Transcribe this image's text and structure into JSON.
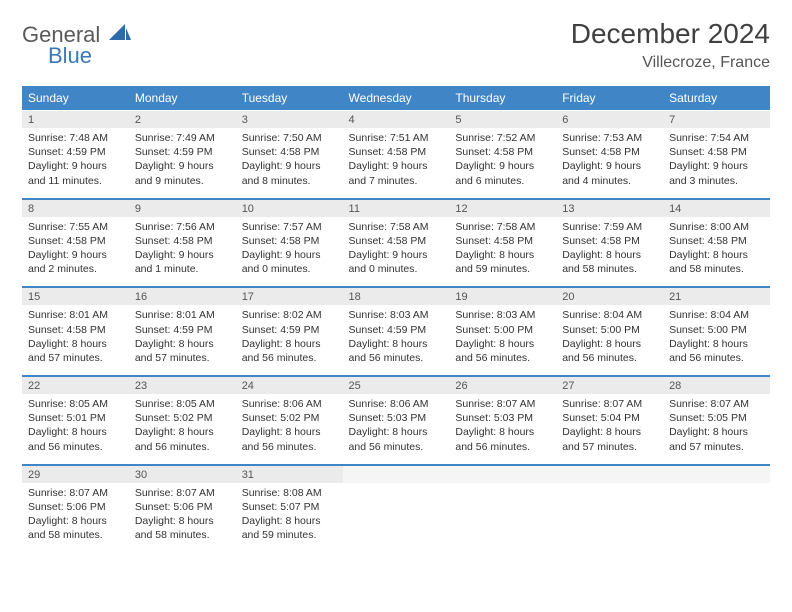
{
  "logo": {
    "line1": "General",
    "line2": "Blue",
    "mark_color": "#2f6aa8"
  },
  "title": "December 2024",
  "location": "Villecroze, France",
  "colors": {
    "header_bg": "#4086c6",
    "header_text": "#ffffff",
    "daynum_bg": "#ebebeb",
    "sep_border": "#4086c6",
    "text": "#333333"
  },
  "daysOfWeek": [
    "Sunday",
    "Monday",
    "Tuesday",
    "Wednesday",
    "Thursday",
    "Friday",
    "Saturday"
  ],
  "weeks": [
    {
      "nums": [
        "1",
        "2",
        "3",
        "4",
        "5",
        "6",
        "7"
      ],
      "details": [
        {
          "sunrise": "Sunrise: 7:48 AM",
          "sunset": "Sunset: 4:59 PM",
          "day1": "Daylight: 9 hours",
          "day2": "and 11 minutes."
        },
        {
          "sunrise": "Sunrise: 7:49 AM",
          "sunset": "Sunset: 4:59 PM",
          "day1": "Daylight: 9 hours",
          "day2": "and 9 minutes."
        },
        {
          "sunrise": "Sunrise: 7:50 AM",
          "sunset": "Sunset: 4:58 PM",
          "day1": "Daylight: 9 hours",
          "day2": "and 8 minutes."
        },
        {
          "sunrise": "Sunrise: 7:51 AM",
          "sunset": "Sunset: 4:58 PM",
          "day1": "Daylight: 9 hours",
          "day2": "and 7 minutes."
        },
        {
          "sunrise": "Sunrise: 7:52 AM",
          "sunset": "Sunset: 4:58 PM",
          "day1": "Daylight: 9 hours",
          "day2": "and 6 minutes."
        },
        {
          "sunrise": "Sunrise: 7:53 AM",
          "sunset": "Sunset: 4:58 PM",
          "day1": "Daylight: 9 hours",
          "day2": "and 4 minutes."
        },
        {
          "sunrise": "Sunrise: 7:54 AM",
          "sunset": "Sunset: 4:58 PM",
          "day1": "Daylight: 9 hours",
          "day2": "and 3 minutes."
        }
      ]
    },
    {
      "nums": [
        "8",
        "9",
        "10",
        "11",
        "12",
        "13",
        "14"
      ],
      "details": [
        {
          "sunrise": "Sunrise: 7:55 AM",
          "sunset": "Sunset: 4:58 PM",
          "day1": "Daylight: 9 hours",
          "day2": "and 2 minutes."
        },
        {
          "sunrise": "Sunrise: 7:56 AM",
          "sunset": "Sunset: 4:58 PM",
          "day1": "Daylight: 9 hours",
          "day2": "and 1 minute."
        },
        {
          "sunrise": "Sunrise: 7:57 AM",
          "sunset": "Sunset: 4:58 PM",
          "day1": "Daylight: 9 hours",
          "day2": "and 0 minutes."
        },
        {
          "sunrise": "Sunrise: 7:58 AM",
          "sunset": "Sunset: 4:58 PM",
          "day1": "Daylight: 9 hours",
          "day2": "and 0 minutes."
        },
        {
          "sunrise": "Sunrise: 7:58 AM",
          "sunset": "Sunset: 4:58 PM",
          "day1": "Daylight: 8 hours",
          "day2": "and 59 minutes."
        },
        {
          "sunrise": "Sunrise: 7:59 AM",
          "sunset": "Sunset: 4:58 PM",
          "day1": "Daylight: 8 hours",
          "day2": "and 58 minutes."
        },
        {
          "sunrise": "Sunrise: 8:00 AM",
          "sunset": "Sunset: 4:58 PM",
          "day1": "Daylight: 8 hours",
          "day2": "and 58 minutes."
        }
      ]
    },
    {
      "nums": [
        "15",
        "16",
        "17",
        "18",
        "19",
        "20",
        "21"
      ],
      "details": [
        {
          "sunrise": "Sunrise: 8:01 AM",
          "sunset": "Sunset: 4:58 PM",
          "day1": "Daylight: 8 hours",
          "day2": "and 57 minutes."
        },
        {
          "sunrise": "Sunrise: 8:01 AM",
          "sunset": "Sunset: 4:59 PM",
          "day1": "Daylight: 8 hours",
          "day2": "and 57 minutes."
        },
        {
          "sunrise": "Sunrise: 8:02 AM",
          "sunset": "Sunset: 4:59 PM",
          "day1": "Daylight: 8 hours",
          "day2": "and 56 minutes."
        },
        {
          "sunrise": "Sunrise: 8:03 AM",
          "sunset": "Sunset: 4:59 PM",
          "day1": "Daylight: 8 hours",
          "day2": "and 56 minutes."
        },
        {
          "sunrise": "Sunrise: 8:03 AM",
          "sunset": "Sunset: 5:00 PM",
          "day1": "Daylight: 8 hours",
          "day2": "and 56 minutes."
        },
        {
          "sunrise": "Sunrise: 8:04 AM",
          "sunset": "Sunset: 5:00 PM",
          "day1": "Daylight: 8 hours",
          "day2": "and 56 minutes."
        },
        {
          "sunrise": "Sunrise: 8:04 AM",
          "sunset": "Sunset: 5:00 PM",
          "day1": "Daylight: 8 hours",
          "day2": "and 56 minutes."
        }
      ]
    },
    {
      "nums": [
        "22",
        "23",
        "24",
        "25",
        "26",
        "27",
        "28"
      ],
      "details": [
        {
          "sunrise": "Sunrise: 8:05 AM",
          "sunset": "Sunset: 5:01 PM",
          "day1": "Daylight: 8 hours",
          "day2": "and 56 minutes."
        },
        {
          "sunrise": "Sunrise: 8:05 AM",
          "sunset": "Sunset: 5:02 PM",
          "day1": "Daylight: 8 hours",
          "day2": "and 56 minutes."
        },
        {
          "sunrise": "Sunrise: 8:06 AM",
          "sunset": "Sunset: 5:02 PM",
          "day1": "Daylight: 8 hours",
          "day2": "and 56 minutes."
        },
        {
          "sunrise": "Sunrise: 8:06 AM",
          "sunset": "Sunset: 5:03 PM",
          "day1": "Daylight: 8 hours",
          "day2": "and 56 minutes."
        },
        {
          "sunrise": "Sunrise: 8:07 AM",
          "sunset": "Sunset: 5:03 PM",
          "day1": "Daylight: 8 hours",
          "day2": "and 56 minutes."
        },
        {
          "sunrise": "Sunrise: 8:07 AM",
          "sunset": "Sunset: 5:04 PM",
          "day1": "Daylight: 8 hours",
          "day2": "and 57 minutes."
        },
        {
          "sunrise": "Sunrise: 8:07 AM",
          "sunset": "Sunset: 5:05 PM",
          "day1": "Daylight: 8 hours",
          "day2": "and 57 minutes."
        }
      ]
    },
    {
      "nums": [
        "29",
        "30",
        "31",
        "",
        "",
        "",
        ""
      ],
      "details": [
        {
          "sunrise": "Sunrise: 8:07 AM",
          "sunset": "Sunset: 5:06 PM",
          "day1": "Daylight: 8 hours",
          "day2": "and 58 minutes."
        },
        {
          "sunrise": "Sunrise: 8:07 AM",
          "sunset": "Sunset: 5:06 PM",
          "day1": "Daylight: 8 hours",
          "day2": "and 58 minutes."
        },
        {
          "sunrise": "Sunrise: 8:08 AM",
          "sunset": "Sunset: 5:07 PM",
          "day1": "Daylight: 8 hours",
          "day2": "and 59 minutes."
        },
        null,
        null,
        null,
        null
      ]
    }
  ]
}
